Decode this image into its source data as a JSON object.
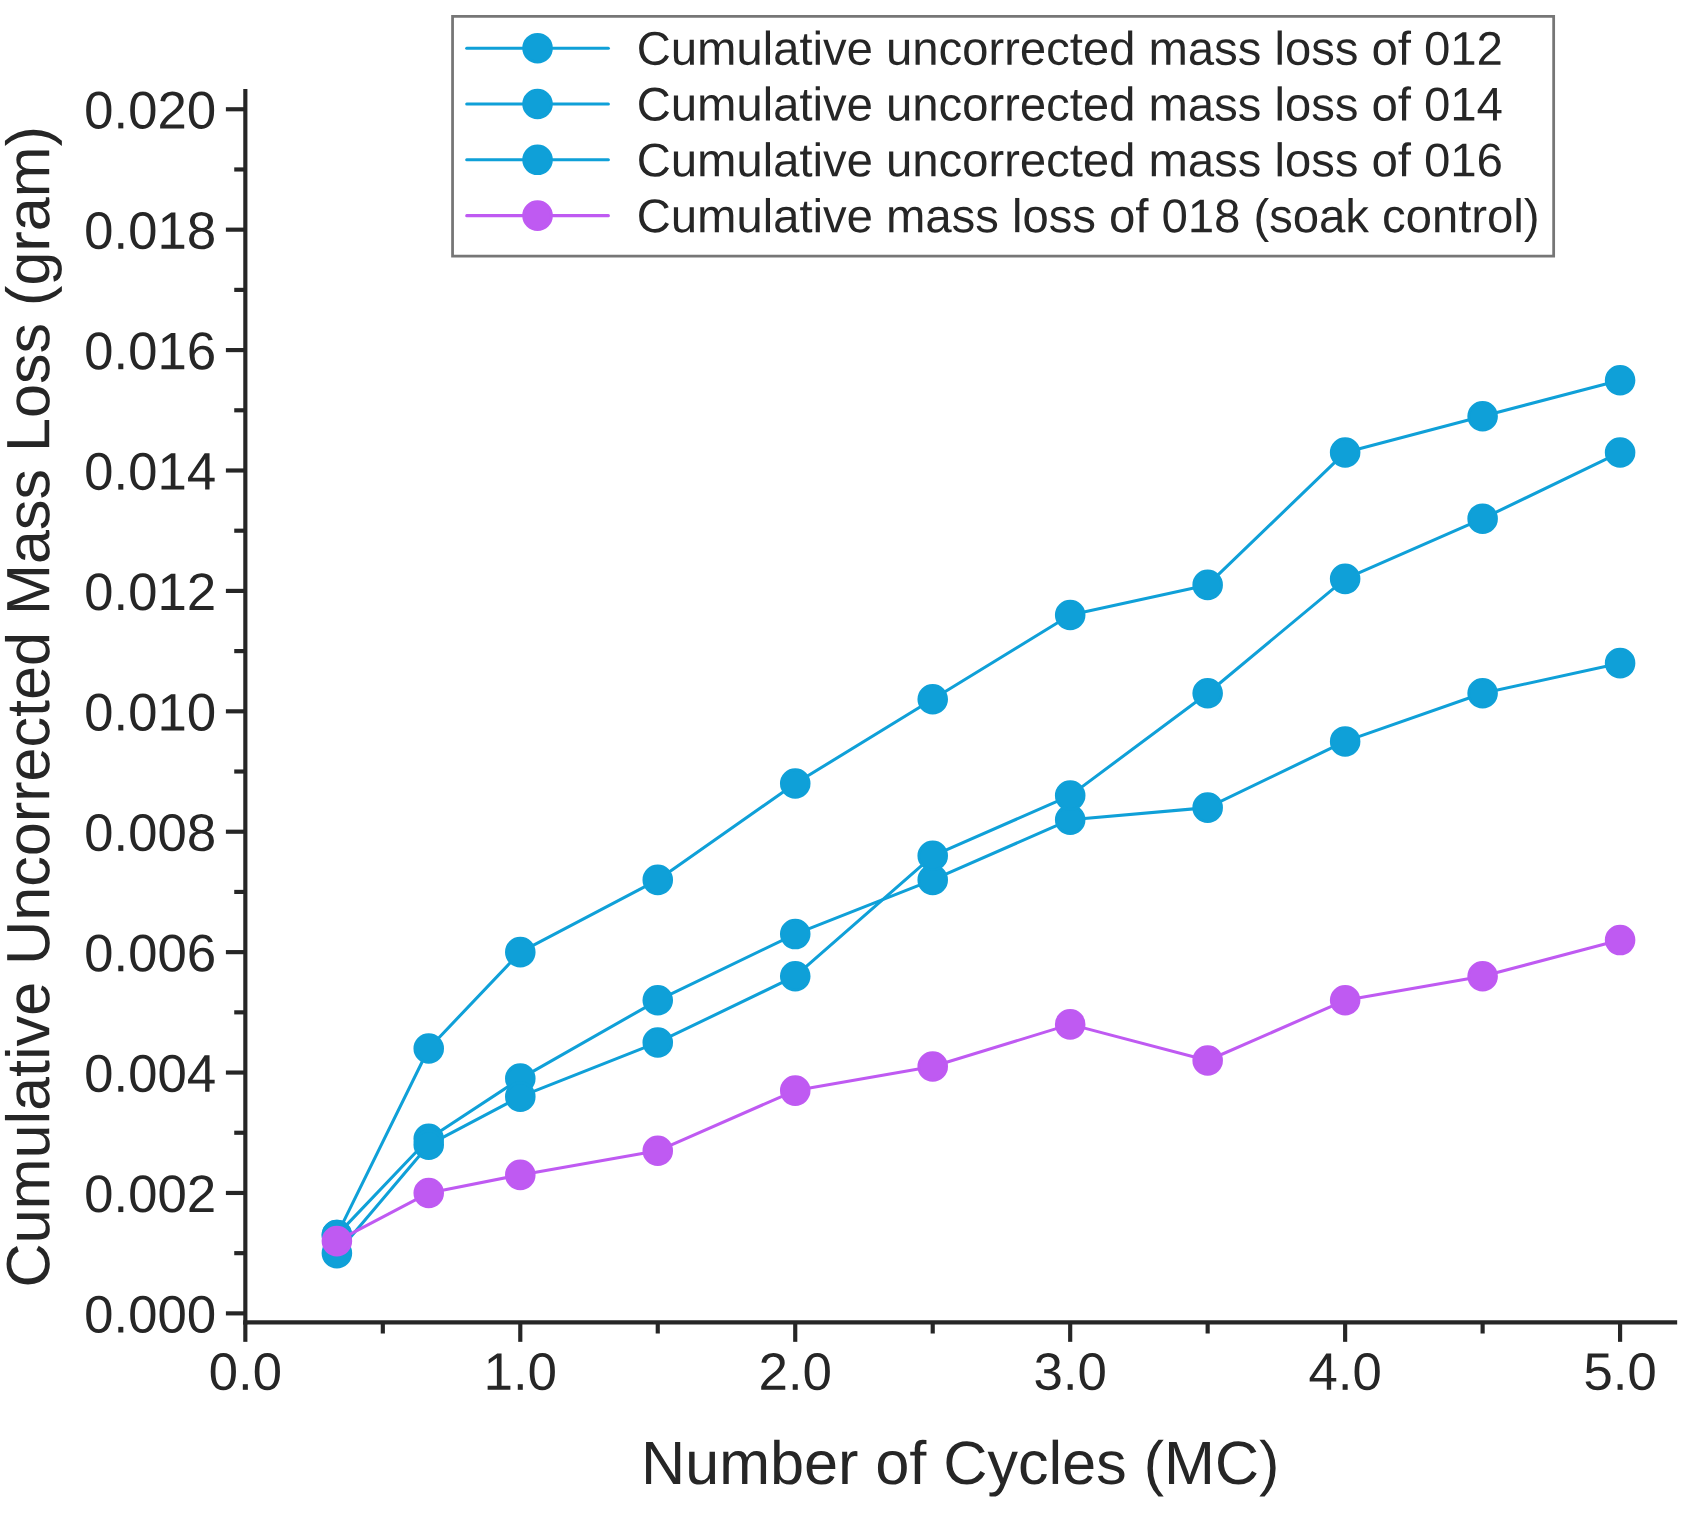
{
  "chart_data": {
    "type": "line",
    "xlabel": "Number of Cycles (MC)",
    "ylabel": "Cumulative Uncorrected Mass Loss (gram)",
    "x": [
      0.333,
      0.667,
      1.0,
      1.5,
      2.0,
      2.5,
      3.0,
      3.5,
      4.0,
      4.5,
      5.0
    ],
    "series": [
      {
        "name": "Cumulative uncorrected mass loss of 012",
        "color": "#0fa0d8",
        "values": [
          0.0013,
          0.0029,
          0.0039,
          0.0052,
          0.0063,
          0.0072,
          0.0082,
          0.0084,
          0.0095,
          0.0103,
          0.0108
        ]
      },
      {
        "name": "Cumulative uncorrected mass loss of 014",
        "color": "#0fa0d8",
        "values": [
          0.0013,
          0.0044,
          0.006,
          0.0072,
          0.0088,
          0.0102,
          0.0116,
          0.0121,
          0.0143,
          0.0149,
          0.0155
        ]
      },
      {
        "name": "Cumulative uncorrected mass loss of 016",
        "color": "#0fa0d8",
        "values": [
          0.001,
          0.0028,
          0.0036,
          0.0045,
          0.0056,
          0.0076,
          0.0086,
          0.0103,
          0.0122,
          0.0132,
          0.0143
        ]
      },
      {
        "name": "Cumulative mass loss of 018 (soak control)",
        "color": "#bf5af2",
        "values": [
          0.0012,
          0.002,
          0.0023,
          0.0027,
          0.0037,
          0.0041,
          0.0048,
          0.0042,
          0.0052,
          0.0056,
          0.0062
        ]
      }
    ],
    "xlim": [
      0.0,
      5.2
    ],
    "xticks": [
      {
        "value": 0,
        "label": "0.0"
      },
      {
        "value": 1,
        "label": "1.0"
      },
      {
        "value": 2,
        "label": "2.0"
      },
      {
        "value": 3,
        "label": "3.0"
      },
      {
        "value": 4,
        "label": "4.0"
      },
      {
        "value": 5,
        "label": "5.0"
      }
    ],
    "ylim": [
      -0.00015,
      0.0203
    ],
    "yticks": [
      {
        "value": 0,
        "label": "0.000"
      },
      {
        "value": 0.002,
        "label": "0.002"
      },
      {
        "value": 0.004,
        "label": "0.004"
      },
      {
        "value": 0.006,
        "label": "0.006"
      },
      {
        "value": 0.008,
        "label": "0.008"
      },
      {
        "value": 0.01,
        "label": "0.010"
      },
      {
        "value": 0.012,
        "label": "0.012"
      },
      {
        "value": 0.014,
        "label": "0.014"
      },
      {
        "value": 0.016,
        "label": "0.016"
      },
      {
        "value": 0.018,
        "label": "0.018"
      },
      {
        "value": 0.02,
        "label": "0.020"
      }
    ],
    "grid": false,
    "legend": "top",
    "marker": "circle",
    "line_style": "solid"
  }
}
